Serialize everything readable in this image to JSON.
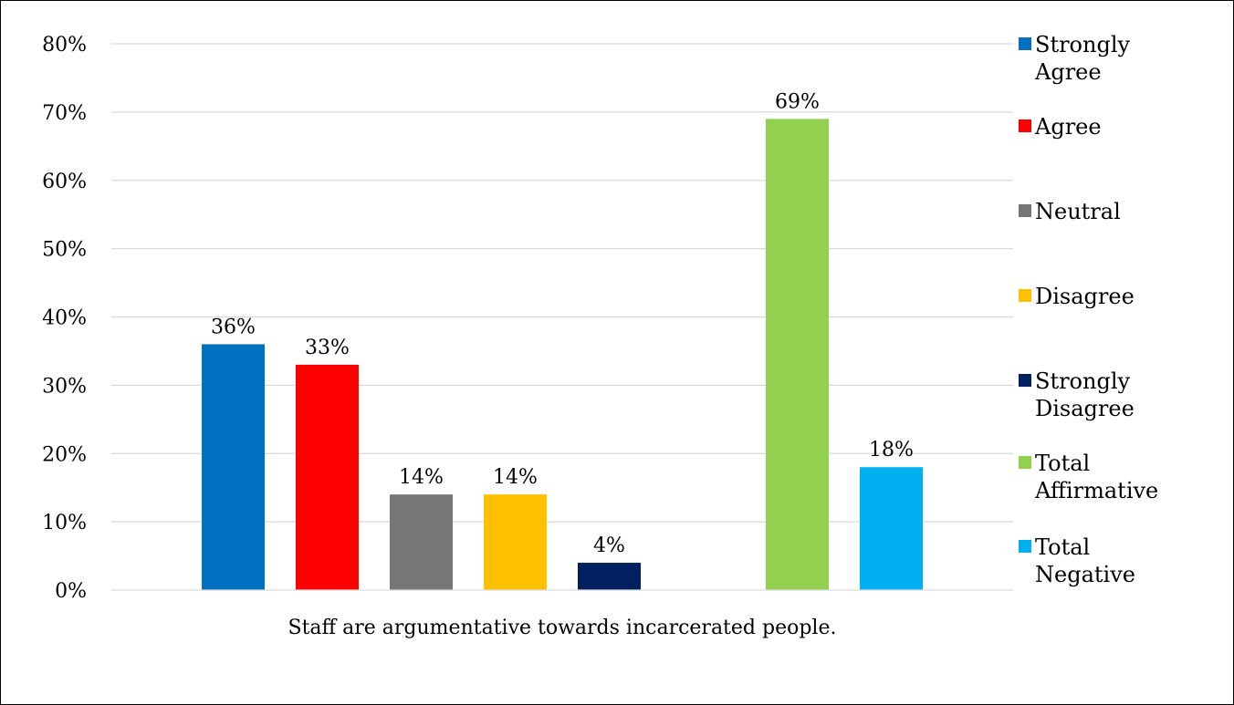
{
  "chart_data": {
    "type": "bar",
    "categories": [
      "Staff are argumentative towards incarcerated people."
    ],
    "series": [
      {
        "name": "Strongly Agree",
        "legend_lines": [
          "Strongly",
          "Agree"
        ],
        "value": 36,
        "label": "36%",
        "color": "#0070C0"
      },
      {
        "name": "Agree",
        "legend_lines": [
          "Agree"
        ],
        "value": 33,
        "label": "33%",
        "color": "#FF0000"
      },
      {
        "name": "Neutral",
        "legend_lines": [
          "Neutral"
        ],
        "value": 14,
        "label": "14%",
        "color": "#767676"
      },
      {
        "name": "Disagree",
        "legend_lines": [
          "Disagree"
        ],
        "value": 14,
        "label": "14%",
        "color": "#FFC000"
      },
      {
        "name": "Strongly Disagree",
        "legend_lines": [
          "Strongly",
          "Disagree"
        ],
        "value": 4,
        "label": "4%",
        "color": "#002060"
      },
      {
        "name": "Total Affirmative",
        "legend_lines": [
          "Total",
          "Affirmative"
        ],
        "value": 69,
        "label": "69%",
        "color": "#92D050"
      },
      {
        "name": "Total Negative",
        "legend_lines": [
          "Total",
          "Negative"
        ],
        "value": 18,
        "label": "18%",
        "color": "#00B0F0"
      }
    ],
    "gap_after_index": 4,
    "y_ticks": [
      "0%",
      "10%",
      "20%",
      "30%",
      "40%",
      "50%",
      "60%",
      "70%",
      "80%"
    ],
    "ylim": [
      0,
      80
    ],
    "grid": true,
    "legend_position": "right"
  }
}
